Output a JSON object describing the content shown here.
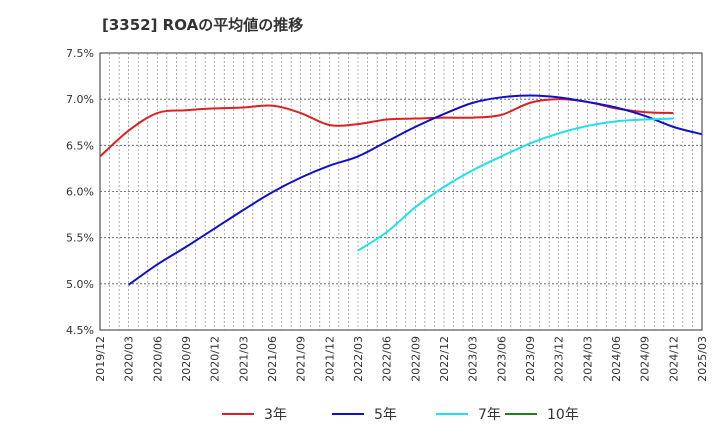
{
  "chart_data": {
    "type": "line",
    "title": "[3352]  ROAの平均値の推移",
    "xlabel": "",
    "ylabel": "",
    "ylim": [
      4.5,
      7.5
    ],
    "y_ticks": [
      4.5,
      5.0,
      5.5,
      6.0,
      6.5,
      7.0,
      7.5
    ],
    "y_tick_labels": [
      "4.5%",
      "5.0%",
      "5.5%",
      "6.0%",
      "6.5%",
      "7.0%",
      "7.5%"
    ],
    "x_tick_labels": [
      "2019/12",
      "2020/03",
      "2020/06",
      "2020/09",
      "2020/12",
      "2021/03",
      "2021/06",
      "2021/09",
      "2021/12",
      "2022/03",
      "2022/06",
      "2022/09",
      "2022/12",
      "2023/03",
      "2023/06",
      "2023/09",
      "2023/12",
      "2024/03",
      "2024/06",
      "2024/09",
      "2024/12",
      "2025/03"
    ],
    "grid": true,
    "legend_position": "bottom",
    "series": [
      {
        "name": "3年",
        "color": "#e02020",
        "start_index": 0,
        "values": [
          6.38,
          6.66,
          6.85,
          6.88,
          6.9,
          6.91,
          6.93,
          6.85,
          6.72,
          6.73,
          6.78,
          6.79,
          6.8,
          6.8,
          6.83,
          6.96,
          7.0,
          6.97,
          6.9,
          6.86,
          6.85
        ]
      },
      {
        "name": "5年",
        "color": "#1010cc",
        "start_index": 1,
        "values": [
          4.99,
          5.21,
          5.4,
          5.6,
          5.8,
          5.99,
          6.15,
          6.28,
          6.38,
          6.54,
          6.7,
          6.84,
          6.96,
          7.02,
          7.04,
          7.02,
          6.97,
          6.91,
          6.82,
          6.7,
          6.62
        ]
      },
      {
        "name": "7年",
        "color": "#20e0f0",
        "start_index": 9,
        "values": [
          5.36,
          5.56,
          5.83,
          6.05,
          6.23,
          6.38,
          6.52,
          6.63,
          6.71,
          6.76,
          6.78,
          6.79
        ]
      },
      {
        "name": "10年",
        "color": "#208020",
        "start_index": 0,
        "values": []
      }
    ]
  }
}
